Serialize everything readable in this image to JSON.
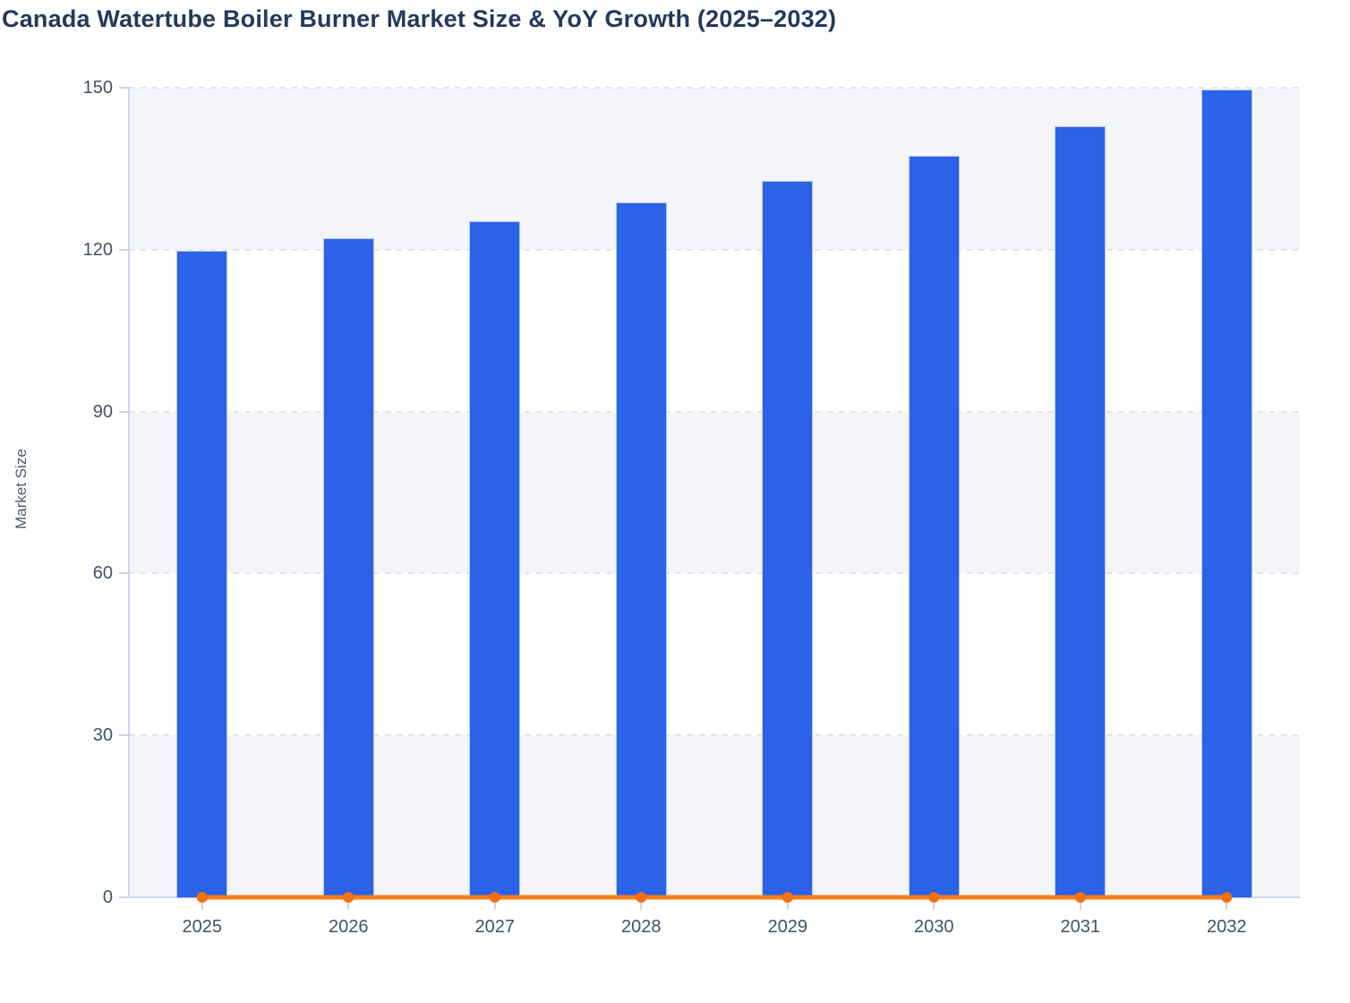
{
  "chart_data": {
    "type": "bar",
    "title": "Canada Watertube Boiler Burner Market Size & YoY Growth (2025–2032)",
    "xlabel": "",
    "ylabel": "Market Size",
    "categories": [
      "2025",
      "2026",
      "2027",
      "2028",
      "2029",
      "2030",
      "2031",
      "2032"
    ],
    "series": [
      {
        "name": "Market Size",
        "type": "bar",
        "color": "#2a63e8",
        "values": [
          119.6,
          122.0,
          125.1,
          128.6,
          132.6,
          137.2,
          142.7,
          149.5
        ]
      },
      {
        "name": "YoY Growth",
        "type": "line",
        "color": "#fa7c1c",
        "marker_color": "#f2700e",
        "values": [
          0,
          0,
          0,
          0,
          0,
          0,
          0,
          0
        ]
      }
    ],
    "ylim": [
      0,
      150
    ],
    "yticks": [
      0,
      30,
      60,
      90,
      120,
      150
    ],
    "grid": "horizontal dashed gridlines at each y tick",
    "plot_background": "alternating horizontal bands from bottom: shaded, white, shaded, white, shaded",
    "legend": "none"
  },
  "colors": {
    "bar_fill": "#2a63e8",
    "bar_border": "#b7c8f1",
    "line": "#fa7c1c",
    "line_marker": "#f2700e",
    "title_text": "#233a5c",
    "tick_label_text": "#445168",
    "axis_title_text": "#4a5a70",
    "band_shaded": "#f4f5f9",
    "band_white": "#ffffff",
    "gridline": "#e1e3e8",
    "axis_line": "#ccd4ec",
    "page_background": "#ffffff"
  }
}
